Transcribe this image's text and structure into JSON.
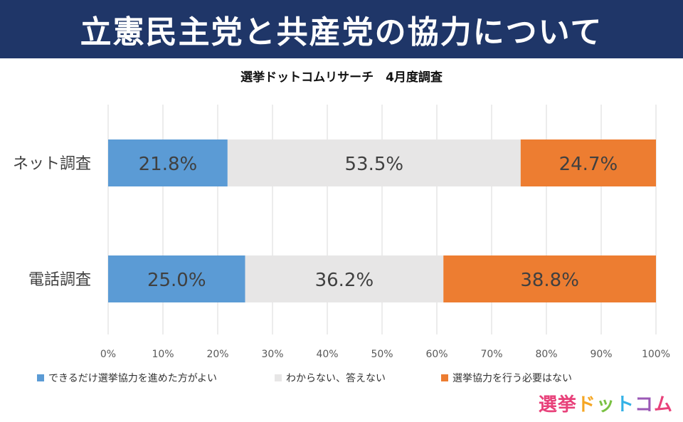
{
  "banner": {
    "title": "立憲民主党と共産党の協力について"
  },
  "subtitle": "選挙ドットコムリサーチ　4月度調査",
  "chart_data": {
    "type": "bar",
    "orientation": "horizontal",
    "stacked": true,
    "percent_stacked": true,
    "categories": [
      "ネット調査",
      "電話調査"
    ],
    "series": [
      {
        "name": "できるだけ選挙協力を進めた方がよい",
        "values": [
          21.8,
          25.0
        ],
        "labels": [
          "21.8%",
          "25.0%"
        ],
        "color": "#5b9bd5"
      },
      {
        "name": "わからない、答えない",
        "values": [
          53.5,
          36.2
        ],
        "labels": [
          "53.5%",
          "36.2%"
        ],
        "color": "#e7e6e6"
      },
      {
        "name": "選挙協力を行う必要はない",
        "values": [
          24.7,
          38.8
        ],
        "labels": [
          "24.7%",
          "38.8%"
        ],
        "color": "#ed7d31"
      }
    ],
    "xlim": [
      0,
      100
    ],
    "xticks": [
      "0%",
      "10%",
      "20%",
      "30%",
      "40%",
      "50%",
      "60%",
      "70%",
      "80%",
      "90%",
      "100%"
    ],
    "grid": true,
    "legend_position": "bottom"
  },
  "logo": {
    "chars": [
      "選",
      "挙",
      "ド",
      "ッ",
      "ト",
      "コ",
      "ム"
    ],
    "colors": [
      "#e8417a",
      "#e8417a",
      "#f5a623",
      "#7ac143",
      "#33b1e6",
      "#9b59b6",
      "#e8417a"
    ]
  }
}
